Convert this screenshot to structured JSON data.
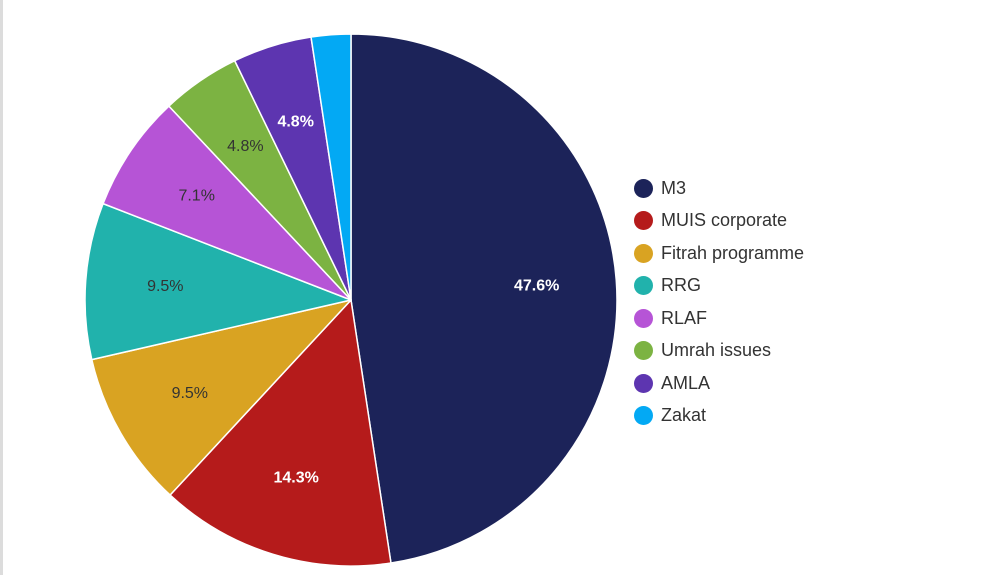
{
  "chart_data": {
    "type": "pie",
    "title": "",
    "legend_position": "right",
    "slices": [
      {
        "name": "M3",
        "value": 47.6,
        "label": "47.6%",
        "color": "#1c2359",
        "label_color": "#ffffff"
      },
      {
        "name": "MUIS corporate",
        "value": 14.3,
        "label": "14.3%",
        "color": "#b51b1b",
        "label_color": "#ffffff"
      },
      {
        "name": "Fitrah programme",
        "value": 9.5,
        "label": "9.5%",
        "color": "#d9a322",
        "label_color": "#333333"
      },
      {
        "name": "RRG",
        "value": 9.5,
        "label": "9.5%",
        "color": "#21b2ac",
        "label_color": "#333333"
      },
      {
        "name": "RLAF",
        "value": 7.1,
        "label": "7.1%",
        "color": "#b654d6",
        "label_color": "#333333"
      },
      {
        "name": "Umrah issues",
        "value": 4.8,
        "label": "4.8%",
        "color": "#7cb342",
        "label_color": "#333333"
      },
      {
        "name": "AMLA",
        "value": 4.8,
        "label": "4.8%",
        "color": "#5d35b0",
        "label_color": "#ffffff"
      },
      {
        "name": "Zakat",
        "value": 2.4,
        "label": "",
        "color": "#03a9f4",
        "label_color": "#333333"
      }
    ]
  }
}
